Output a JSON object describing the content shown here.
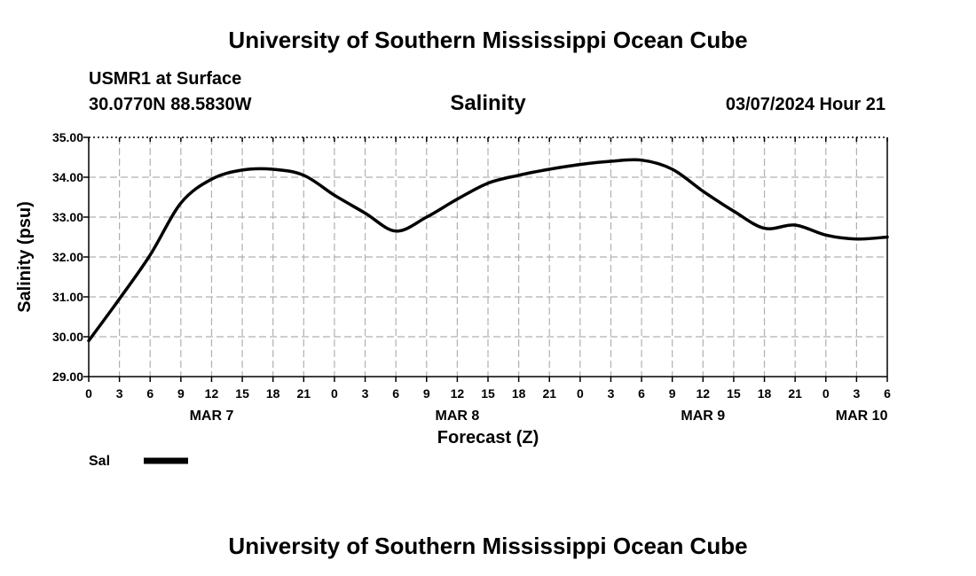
{
  "header": {
    "title_top": "University of Southern Mississippi Ocean Cube",
    "station": "USMR1 at Surface",
    "coords": "30.0770N  88.5830W",
    "variable": "Salinity",
    "timestamp": "03/07/2024 Hour 21"
  },
  "footer": {
    "title_bottom": "University of Southern Mississippi Ocean Cube"
  },
  "chart_data": {
    "type": "line",
    "title": "Salinity",
    "xlabel": "Forecast (Z)",
    "ylabel": "Salinity (psu)",
    "ylim": [
      29.0,
      35.0
    ],
    "xlim": [
      0,
      78
    ],
    "y_ticks": [
      "29.00",
      "30.00",
      "31.00",
      "32.00",
      "33.00",
      "34.00",
      "35.00"
    ],
    "x_ticks": [
      "0",
      "3",
      "6",
      "9",
      "12",
      "15",
      "18",
      "21",
      "0",
      "3",
      "6",
      "9",
      "12",
      "15",
      "18",
      "21",
      "0",
      "3",
      "6",
      "9",
      "12",
      "15",
      "18",
      "21",
      "0",
      "3",
      "6"
    ],
    "date_labels": [
      {
        "label": "MAR 7",
        "hours": 12
      },
      {
        "label": "MAR 8",
        "hours": 36
      },
      {
        "label": "MAR 9",
        "hours": 60
      },
      {
        "label": "MAR 10",
        "hours": 75.5
      }
    ],
    "grid": true,
    "legend": {
      "position": "bottom-left",
      "entries": [
        "Sal"
      ]
    },
    "series": [
      {
        "name": "Sal",
        "color": "#000000",
        "x": [
          0,
          3,
          6,
          9,
          12,
          15,
          18,
          21,
          24,
          27,
          30,
          33,
          36,
          39,
          42,
          45,
          48,
          51,
          54,
          57,
          60,
          63,
          66,
          69,
          72,
          75,
          78
        ],
        "values": [
          29.9,
          30.95,
          32.05,
          33.35,
          33.95,
          34.18,
          34.2,
          34.05,
          33.55,
          33.1,
          32.65,
          33.0,
          33.45,
          33.85,
          34.05,
          34.2,
          34.32,
          34.4,
          34.43,
          34.2,
          33.65,
          33.15,
          32.72,
          32.8,
          32.55,
          32.45,
          32.5
        ]
      }
    ]
  }
}
